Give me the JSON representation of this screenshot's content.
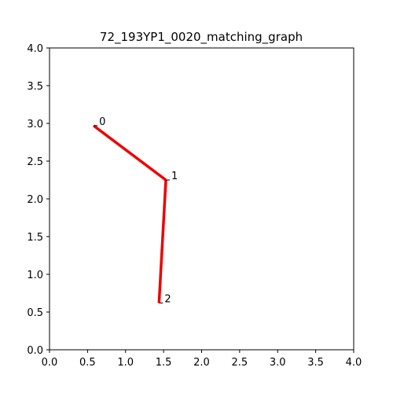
{
  "chart_data": {
    "type": "line",
    "title": "72_193YP1_0020_matching_graph",
    "xlabel": "",
    "ylabel": "",
    "xlim": [
      0,
      4
    ],
    "ylim": [
      0,
      4
    ],
    "xticks": [
      "0.0",
      "0.5",
      "1.0",
      "1.5",
      "2.0",
      "2.5",
      "3.0",
      "3.5",
      "4.0"
    ],
    "yticks": [
      "0.0",
      "0.5",
      "1.0",
      "1.5",
      "2.0",
      "2.5",
      "3.0",
      "3.5",
      "4.0"
    ],
    "grid": false,
    "colors": {
      "edge": "#ee0000",
      "axes": "#000000"
    },
    "nodes": [
      {
        "label": "0",
        "x": 0.58,
        "y": 2.97
      },
      {
        "label": "1",
        "x": 1.53,
        "y": 2.25
      },
      {
        "label": "2",
        "x": 1.44,
        "y": 0.62
      }
    ],
    "edges": [
      {
        "from": 0,
        "to": 1
      },
      {
        "from": 1,
        "to": 2
      }
    ]
  }
}
